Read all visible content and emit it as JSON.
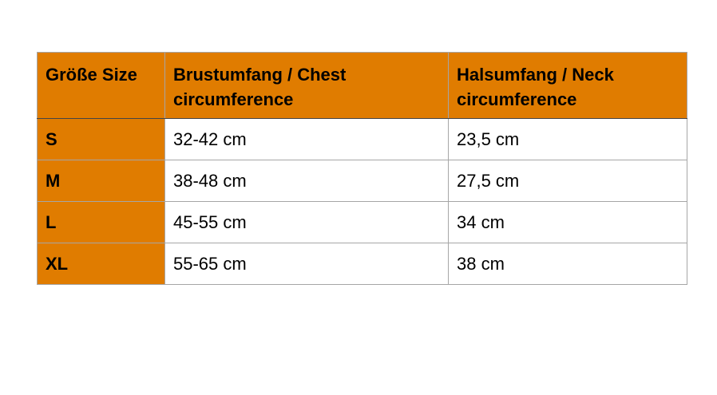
{
  "colors": {
    "header_bg": "#e07c00",
    "size_bg": "#e07c00",
    "grid": "#a6a6a6"
  },
  "headers": [
    "Größe Size",
    "Brustumfang / Chest circumference",
    "Halsumfang / Neck circumference"
  ],
  "rows": [
    {
      "size": "S",
      "chest": "32-42 cm",
      "neck": "23,5 cm"
    },
    {
      "size": "M",
      "chest": "38-48 cm",
      "neck": "27,5 cm"
    },
    {
      "size": "L",
      "chest": "45-55 cm",
      "neck": "34 cm"
    },
    {
      "size": "XL",
      "chest": "55-65 cm",
      "neck": "38 cm"
    }
  ]
}
